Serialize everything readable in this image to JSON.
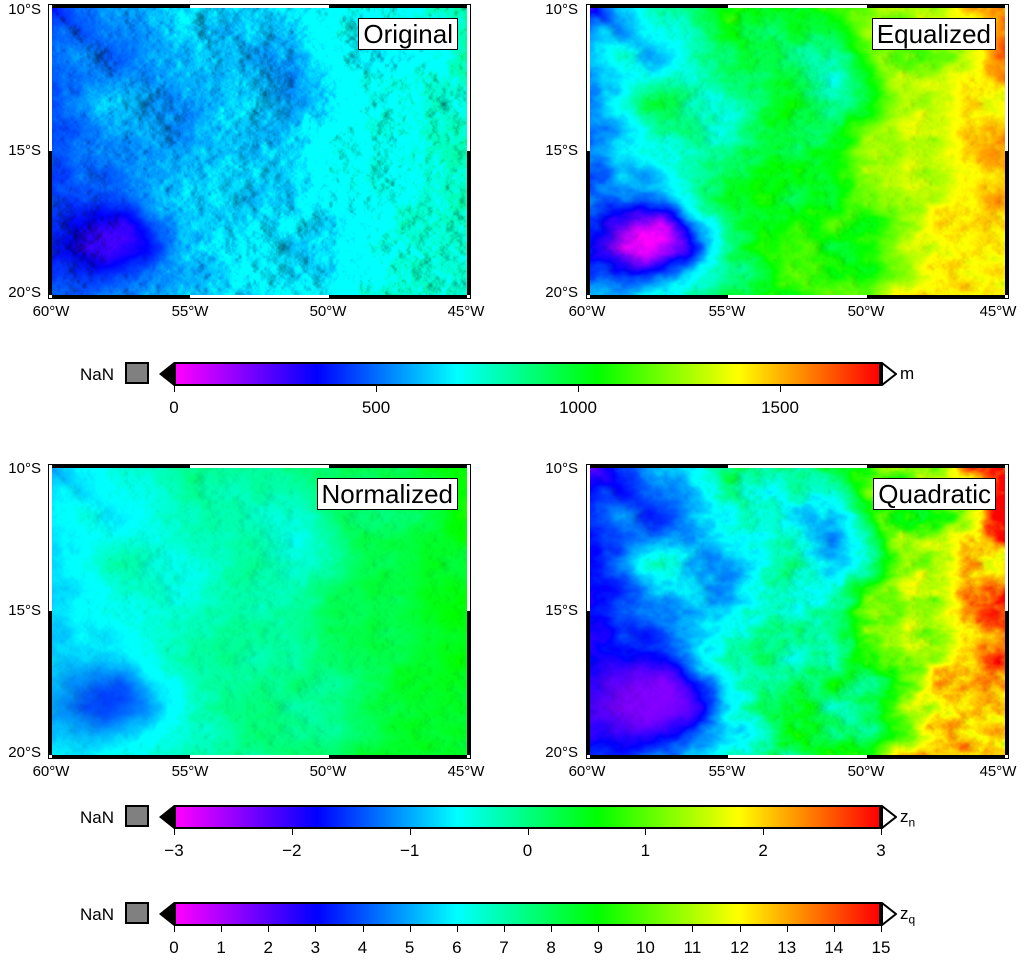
{
  "maps": [
    {
      "title": "Original",
      "mode": "original"
    },
    {
      "title": "Equalized",
      "mode": "equalized"
    },
    {
      "title": "Normalized",
      "mode": "normalized"
    },
    {
      "title": "Quadratic",
      "mode": "quadratic"
    }
  ],
  "axes": {
    "lat_labels": [
      "10°S",
      "15°S",
      "20°S"
    ],
    "lon_labels": [
      "60°W",
      "55°W",
      "50°W",
      "45°W"
    ]
  },
  "colorbars": [
    {
      "nan_label": "NaN",
      "unit": "m",
      "unit_sub": "",
      "ticks": [
        "0",
        "500",
        "1000",
        "1500"
      ],
      "range": [
        0,
        1750
      ],
      "tick_values": [
        0,
        500,
        1000,
        1500
      ]
    },
    {
      "nan_label": "NaN",
      "unit": "z",
      "unit_sub": "n",
      "ticks": [
        "−3",
        "−2",
        "−1",
        "0",
        "1",
        "2",
        "3"
      ],
      "range": [
        -3,
        3
      ],
      "tick_values": [
        -3,
        -2,
        -1,
        0,
        1,
        2,
        3
      ]
    },
    {
      "nan_label": "NaN",
      "unit": "z",
      "unit_sub": "q",
      "ticks": [
        "0",
        "1",
        "2",
        "3",
        "4",
        "5",
        "6",
        "7",
        "8",
        "9",
        "10",
        "11",
        "12",
        "13",
        "14",
        "15"
      ],
      "range": [
        0,
        15
      ],
      "tick_values": [
        0,
        1,
        2,
        3,
        4,
        5,
        6,
        7,
        8,
        9,
        10,
        11,
        12,
        13,
        14,
        15
      ]
    }
  ],
  "colors": {
    "palette": [
      "#ff00ff",
      "#0000ff",
      "#00ffff",
      "#00ff00",
      "#ffff00",
      "#ff0000"
    ],
    "nan": "#808080"
  }
}
